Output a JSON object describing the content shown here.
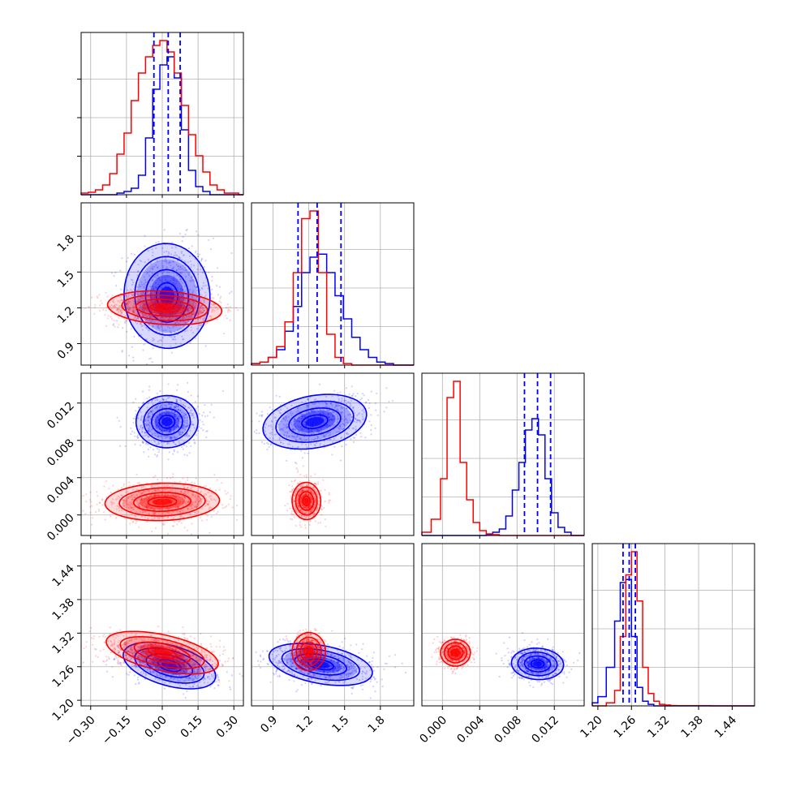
{
  "chart_data": {
    "type": "corner",
    "grid": true,
    "series": [
      {
        "name": "",
        "color": "#0000ff"
      },
      {
        "name": "",
        "color": "#ff0000"
      }
    ],
    "parameters": [
      {
        "range": [
          -0.34,
          0.34
        ],
        "ticks": [
          "−0.30",
          "−0.15",
          "0.00",
          "0.15",
          "0.30"
        ],
        "tick_values": [
          -0.3,
          -0.15,
          0.0,
          0.15,
          0.3
        ]
      },
      {
        "range": [
          0.72,
          2.08
        ],
        "ticks": [
          "0.9",
          "1.2",
          "1.5",
          "1.8"
        ],
        "tick_values": [
          0.9,
          1.2,
          1.5,
          1.8
        ]
      },
      {
        "range": [
          -0.0022,
          0.0152
        ],
        "ticks": [
          "0.000",
          "0.004",
          "0.008",
          "0.012"
        ],
        "tick_values": [
          0.0,
          0.004,
          0.008,
          0.012
        ]
      },
      {
        "range": [
          1.19,
          1.48
        ],
        "ticks": [
          "1.20",
          "1.26",
          "1.32",
          "1.38",
          "1.44"
        ],
        "tick_values": [
          1.2,
          1.26,
          1.32,
          1.38,
          1.44
        ]
      }
    ],
    "quantile_lines": [
      [
        -0.035,
        0.025,
        0.075
      ],
      [
        1.11,
        1.27,
        1.47
      ],
      [
        0.0088,
        0.0102,
        0.0116
      ],
      [
        1.245,
        1.256,
        1.267
      ]
    ],
    "histograms": [
      {
        "edges": [
          -0.34,
          -0.31,
          -0.28,
          -0.25,
          -0.22,
          -0.19,
          -0.16,
          -0.13,
          -0.1,
          -0.07,
          -0.04,
          -0.01,
          0.02,
          0.05,
          0.08,
          0.11,
          0.14,
          0.17,
          0.2,
          0.23,
          0.26,
          0.29,
          0.32,
          0.34
        ],
        "blue": [
          0,
          0,
          0,
          0,
          0,
          0.01,
          0.02,
          0.04,
          0.12,
          0.35,
          0.65,
          0.8,
          0.85,
          0.72,
          0.4,
          0.15,
          0.05,
          0.02,
          0,
          0,
          0,
          0,
          0
        ],
        "red": [
          0.01,
          0.015,
          0.03,
          0.06,
          0.13,
          0.25,
          0.38,
          0.58,
          0.75,
          0.85,
          0.92,
          0.95,
          0.88,
          0.75,
          0.55,
          0.37,
          0.24,
          0.14,
          0.06,
          0.03,
          0.01,
          0.01,
          0
        ]
      },
      {
        "edges": [
          0.72,
          0.79,
          0.86,
          0.93,
          1.0,
          1.07,
          1.14,
          1.21,
          1.28,
          1.35,
          1.42,
          1.49,
          1.56,
          1.63,
          1.7,
          1.77,
          1.84,
          1.91,
          1.98,
          2.08
        ],
        "blue": [
          0.01,
          0.02,
          0.05,
          0.1,
          0.22,
          0.38,
          0.6,
          0.7,
          0.72,
          0.6,
          0.45,
          0.3,
          0.18,
          0.1,
          0.05,
          0.02,
          0.01,
          0,
          0
        ],
        "red": [
          0.01,
          0.02,
          0.05,
          0.12,
          0.28,
          0.6,
          0.95,
          1.0,
          0.6,
          0.2,
          0.05,
          0.01,
          0,
          0,
          0,
          0,
          0,
          0,
          0
        ]
      },
      {
        "edges": [
          -0.0022,
          -0.0012,
          -0.0002,
          0.0005,
          0.0012,
          0.0019,
          0.0026,
          0.0033,
          0.004,
          0.0047,
          0.0054,
          0.0061,
          0.0068,
          0.0075,
          0.0082,
          0.0089,
          0.0096,
          0.0103,
          0.011,
          0.0117,
          0.0124,
          0.0131,
          0.0138,
          0.0152
        ],
        "blue": [
          0,
          0,
          0,
          0,
          0,
          0,
          0,
          0,
          0,
          0.005,
          0.02,
          0.04,
          0.12,
          0.28,
          0.45,
          0.65,
          0.72,
          0.62,
          0.35,
          0.14,
          0.05,
          0.02,
          0
        ],
        "red": [
          0.02,
          0.1,
          0.35,
          0.85,
          0.95,
          0.45,
          0.22,
          0.08,
          0.03,
          0.01,
          0.005,
          0,
          0,
          0,
          0,
          0,
          0,
          0,
          0,
          0,
          0,
          0,
          0
        ]
      },
      {
        "edges": [
          1.19,
          1.2,
          1.215,
          1.23,
          1.24,
          1.25,
          1.26,
          1.27,
          1.28,
          1.29,
          1.3,
          1.31,
          1.32,
          1.33,
          1.34,
          1.36,
          1.4,
          1.48
        ],
        "blue": [
          0.02,
          0.06,
          0.25,
          0.55,
          0.8,
          0.82,
          0.45,
          0.12,
          0.03,
          0.01,
          0,
          0,
          0,
          0,
          0,
          0,
          0
        ],
        "red": [
          0,
          0,
          0.02,
          0.1,
          0.45,
          0.85,
          1.0,
          0.68,
          0.25,
          0.08,
          0.03,
          0.01,
          0.005,
          0.002,
          0.001,
          0.001,
          0
        ]
      }
    ],
    "clouds": [
      {
        "row": 1,
        "col": 0,
        "blue": {
          "mx": 0.02,
          "my": 1.3,
          "sx": 0.09,
          "sy": 0.22,
          "rho": 0.1,
          "n": 800
        },
        "red": {
          "mx": 0.01,
          "my": 1.2,
          "sx": 0.12,
          "sy": 0.07,
          "rho": -0.1,
          "n": 900
        }
      },
      {
        "row": 2,
        "col": 0,
        "blue": {
          "mx": 0.02,
          "my": 0.01,
          "sx": 0.065,
          "sy": 0.0014,
          "rho": 0.05,
          "n": 800
        },
        "red": {
          "mx": 0.0,
          "my": 0.0014,
          "sx": 0.12,
          "sy": 0.001,
          "rho": 0.05,
          "n": 900
        }
      },
      {
        "row": 3,
        "col": 0,
        "blue": {
          "mx": 0.03,
          "my": 1.262,
          "sx": 0.1,
          "sy": 0.018,
          "rho": -0.45,
          "n": 800
        },
        "red": {
          "mx": 0.0,
          "my": 1.285,
          "sx": 0.12,
          "sy": 0.016,
          "rho": -0.35,
          "n": 900
        }
      },
      {
        "row": 2,
        "col": 1,
        "blue": {
          "mx": 1.25,
          "my": 0.01,
          "sx": 0.22,
          "sy": 0.0014,
          "rho": 0.3,
          "n": 800
        },
        "red": {
          "mx": 1.18,
          "my": 0.0015,
          "sx": 0.06,
          "sy": 0.001,
          "rho": 0.05,
          "n": 700
        }
      },
      {
        "row": 3,
        "col": 1,
        "blue": {
          "mx": 1.3,
          "my": 1.264,
          "sx": 0.22,
          "sy": 0.017,
          "rho": -0.3,
          "n": 800
        },
        "red": {
          "mx": 1.2,
          "my": 1.287,
          "sx": 0.07,
          "sy": 0.017,
          "rho": -0.1,
          "n": 700
        }
      },
      {
        "row": 3,
        "col": 2,
        "blue": {
          "mx": 0.0102,
          "my": 1.265,
          "sx": 0.0014,
          "sy": 0.014,
          "rho": -0.1,
          "n": 800
        },
        "red": {
          "mx": 0.0014,
          "my": 1.285,
          "sx": 0.0008,
          "sy": 0.012,
          "rho": 0.0,
          "n": 700
        }
      }
    ]
  }
}
